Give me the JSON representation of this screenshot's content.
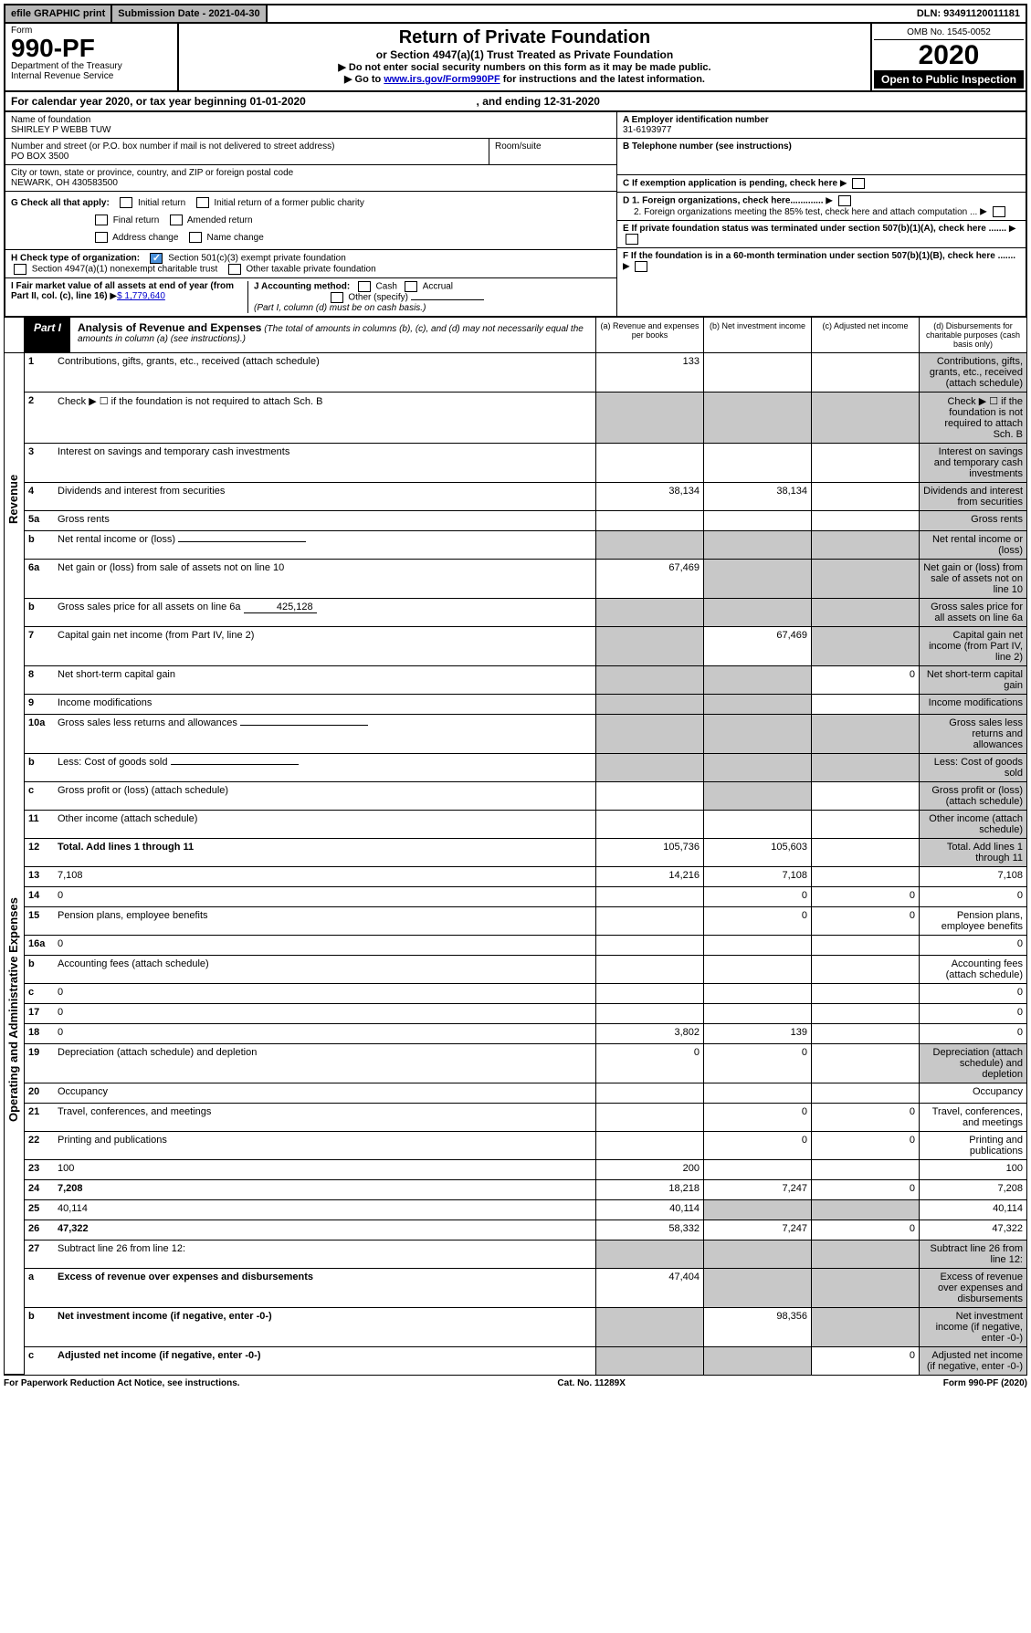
{
  "topbar": {
    "efile": "efile GRAPHIC print",
    "submission": "Submission Date - 2021-04-30",
    "dln": "DLN: 93491120011181"
  },
  "header": {
    "form_label": "Form",
    "form_number": "990-PF",
    "dept": "Department of the Treasury",
    "irs": "Internal Revenue Service",
    "title": "Return of Private Foundation",
    "subtitle": "or Section 4947(a)(1) Trust Treated as Private Foundation",
    "note1": "▶ Do not enter social security numbers on this form as it may be made public.",
    "note2_pre": "▶ Go to ",
    "note2_link": "www.irs.gov/Form990PF",
    "note2_post": " for instructions and the latest information.",
    "omb": "OMB No. 1545-0052",
    "year": "2020",
    "open": "Open to Public Inspection"
  },
  "calyear": {
    "text_pre": "For calendar year 2020, or tax year beginning ",
    "begin": "01-01-2020",
    "text_mid": " , and ending ",
    "end": "12-31-2020"
  },
  "info": {
    "name_label": "Name of foundation",
    "name": "SHIRLEY P WEBB TUW",
    "addr_label": "Number and street (or P.O. box number if mail is not delivered to street address)",
    "addr": "PO BOX 3500",
    "room_label": "Room/suite",
    "city_label": "City or town, state or province, country, and ZIP or foreign postal code",
    "city": "NEWARK, OH  430583500",
    "ein_label": "A Employer identification number",
    "ein": "31-6193977",
    "tel_label": "B Telephone number (see instructions)",
    "c_label": "C If exemption application is pending, check here",
    "d1": "D 1. Foreign organizations, check here.............",
    "d2": "2. Foreign organizations meeting the 85% test, check here and attach computation ...",
    "e": "E If private foundation status was terminated under section 507(b)(1)(A), check here .......",
    "f": "F If the foundation is in a 60-month termination under section 507(b)(1)(B), check here .......",
    "g_label": "G Check all that apply:",
    "g_opts": [
      "Initial return",
      "Initial return of a former public charity",
      "Final return",
      "Amended return",
      "Address change",
      "Name change"
    ],
    "h_label": "H Check type of organization:",
    "h1": "Section 501(c)(3) exempt private foundation",
    "h2": "Section 4947(a)(1) nonexempt charitable trust",
    "h3": "Other taxable private foundation",
    "i_label": "I Fair market value of all assets at end of year (from Part II, col. (c), line 16)",
    "i_val": "$  1,779,640",
    "j_label": "J Accounting method:",
    "j_cash": "Cash",
    "j_accrual": "Accrual",
    "j_other": "Other (specify)",
    "j_note": "(Part I, column (d) must be on cash basis.)"
  },
  "part1": {
    "label": "Part I",
    "title": "Analysis of Revenue and Expenses",
    "note": " (The total of amounts in columns (b), (c), and (d) may not necessarily equal the amounts in column (a) (see instructions).)",
    "cols": {
      "a": "(a) Revenue and expenses per books",
      "b": "(b) Net investment income",
      "c": "(c) Adjusted net income",
      "d": "(d) Disbursements for charitable purposes (cash basis only)"
    }
  },
  "sidelabels": {
    "rev": "Revenue",
    "exp": "Operating and Administrative Expenses"
  },
  "rows": [
    {
      "n": "1",
      "d": "Contributions, gifts, grants, etc., received (attach schedule)",
      "a": "133",
      "grey": [
        "d"
      ]
    },
    {
      "n": "2",
      "d": "Check ▶ ☐ if the foundation is not required to attach Sch. B",
      "nocell": true,
      "grey": [
        "a",
        "b",
        "c",
        "d"
      ]
    },
    {
      "n": "3",
      "d": "Interest on savings and temporary cash investments",
      "grey": [
        "d"
      ]
    },
    {
      "n": "4",
      "d": "Dividends and interest from securities",
      "a": "38,134",
      "b": "38,134",
      "grey": [
        "d"
      ]
    },
    {
      "n": "5a",
      "d": "Gross rents",
      "grey": [
        "d"
      ]
    },
    {
      "n": "b",
      "d": "Net rental income or (loss)",
      "inline": true,
      "grey": [
        "a",
        "b",
        "c",
        "d"
      ]
    },
    {
      "n": "6a",
      "d": "Net gain or (loss) from sale of assets not on line 10",
      "a": "67,469",
      "grey": [
        "b",
        "c",
        "d"
      ]
    },
    {
      "n": "b",
      "d": "Gross sales price for all assets on line 6a",
      "inline_val": "425,128",
      "grey": [
        "a",
        "b",
        "c",
        "d"
      ]
    },
    {
      "n": "7",
      "d": "Capital gain net income (from Part IV, line 2)",
      "b": "67,469",
      "grey": [
        "a",
        "c",
        "d"
      ]
    },
    {
      "n": "8",
      "d": "Net short-term capital gain",
      "c": "0",
      "grey": [
        "a",
        "b",
        "d"
      ]
    },
    {
      "n": "9",
      "d": "Income modifications",
      "grey": [
        "a",
        "b",
        "d"
      ]
    },
    {
      "n": "10a",
      "d": "Gross sales less returns and allowances",
      "inline": true,
      "grey": [
        "a",
        "b",
        "c",
        "d"
      ]
    },
    {
      "n": "b",
      "d": "Less: Cost of goods sold",
      "inline": true,
      "grey": [
        "a",
        "b",
        "c",
        "d"
      ]
    },
    {
      "n": "c",
      "d": "Gross profit or (loss) (attach schedule)",
      "grey": [
        "b",
        "d"
      ]
    },
    {
      "n": "11",
      "d": "Other income (attach schedule)",
      "grey": [
        "d"
      ]
    },
    {
      "n": "12",
      "d": "Total. Add lines 1 through 11",
      "bold": true,
      "a": "105,736",
      "b": "105,603",
      "grey": [
        "d"
      ]
    },
    {
      "n": "13",
      "d": "7,108",
      "a": "14,216",
      "b": "7,108"
    },
    {
      "n": "14",
      "d": "0",
      "b": "0",
      "c": "0"
    },
    {
      "n": "15",
      "d": "Pension plans, employee benefits",
      "b": "0",
      "c": "0"
    },
    {
      "n": "16a",
      "d": "0"
    },
    {
      "n": "b",
      "d": "Accounting fees (attach schedule)"
    },
    {
      "n": "c",
      "d": "0"
    },
    {
      "n": "17",
      "d": "0"
    },
    {
      "n": "18",
      "d": "0",
      "a": "3,802",
      "b": "139"
    },
    {
      "n": "19",
      "d": "Depreciation (attach schedule) and depletion",
      "a": "0",
      "b": "0",
      "grey": [
        "d"
      ]
    },
    {
      "n": "20",
      "d": "Occupancy"
    },
    {
      "n": "21",
      "d": "Travel, conferences, and meetings",
      "b": "0",
      "c": "0"
    },
    {
      "n": "22",
      "d": "Printing and publications",
      "b": "0",
      "c": "0"
    },
    {
      "n": "23",
      "d": "100",
      "a": "200"
    },
    {
      "n": "24",
      "d": "7,208",
      "bold": true,
      "a": "18,218",
      "b": "7,247",
      "c": "0"
    },
    {
      "n": "25",
      "d": "40,114",
      "a": "40,114",
      "grey": [
        "b",
        "c"
      ]
    },
    {
      "n": "26",
      "d": "47,322",
      "bold": true,
      "a": "58,332",
      "b": "7,247",
      "c": "0"
    },
    {
      "n": "27",
      "d": "Subtract line 26 from line 12:",
      "grey": [
        "a",
        "b",
        "c",
        "d"
      ]
    },
    {
      "n": "a",
      "d": "Excess of revenue over expenses and disbursements",
      "bold": true,
      "a": "47,404",
      "grey": [
        "b",
        "c",
        "d"
      ]
    },
    {
      "n": "b",
      "d": "Net investment income (if negative, enter -0-)",
      "bold": true,
      "b": "98,356",
      "grey": [
        "a",
        "c",
        "d"
      ]
    },
    {
      "n": "c",
      "d": "Adjusted net income (if negative, enter -0-)",
      "bold": true,
      "c": "0",
      "grey": [
        "a",
        "b",
        "d"
      ]
    }
  ],
  "footer": {
    "left": "For Paperwork Reduction Act Notice, see instructions.",
    "mid": "Cat. No. 11289X",
    "right": "Form 990-PF (2020)"
  },
  "colors": {
    "grey_fill": "#c8c8c8",
    "button_grey": "#b8b8b8",
    "link": "#0000cc",
    "check_blue": "#4a90d9"
  }
}
